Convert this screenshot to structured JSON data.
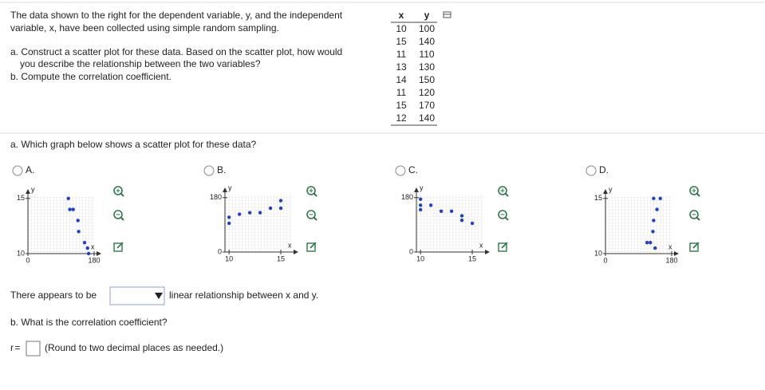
{
  "question": {
    "intro": [
      "The data shown to the right for the dependent variable, y, and the independent",
      "variable, x, have been collected using simple random sampling."
    ],
    "part_a": [
      "a. Construct a scatter plot for these data. Based on the scatter plot, how would",
      "you describe the relationship between the two variables?"
    ],
    "part_b": "b. Compute the correlation coefficient."
  },
  "table": {
    "headers": [
      "x",
      "y"
    ],
    "rows": [
      [
        10,
        100
      ],
      [
        15,
        140
      ],
      [
        11,
        110
      ],
      [
        13,
        130
      ],
      [
        14,
        150
      ],
      [
        11,
        120
      ],
      [
        15,
        170
      ],
      [
        12,
        140
      ]
    ]
  },
  "part_a": {
    "prompt": "a. Which graph below shows a scatter plot for these data?",
    "options": [
      {
        "label": "A.",
        "graph": {
          "x_label": "x",
          "y_label": "y",
          "xlim": [
            0,
            180
          ],
          "ylim": [
            10,
            15.2
          ],
          "xticks": [
            0,
            180
          ],
          "yticks": [
            10,
            15
          ],
          "x": [
            110,
            114,
            123,
            136,
            138,
            154,
            162,
            165
          ],
          "y": [
            15,
            14,
            14,
            13,
            12,
            11,
            10.5,
            10
          ]
        }
      },
      {
        "label": "B.",
        "graph": {
          "x_label": "x",
          "y_label": "y",
          "xlim": [
            9.6,
            16
          ],
          "ylim": [
            0,
            190
          ],
          "xticks": [
            10,
            15
          ],
          "yticks": [
            0,
            180
          ],
          "x": [
            10,
            10,
            11,
            12,
            13,
            14,
            15,
            15
          ],
          "y": [
            95,
            115,
            125,
            130,
            130,
            145,
            145,
            170
          ]
        }
      },
      {
        "label": "C.",
        "graph": {
          "x_label": "x",
          "y_label": "y",
          "xlim": [
            9.6,
            16
          ],
          "ylim": [
            0,
            190
          ],
          "xticks": [
            10,
            15
          ],
          "yticks": [
            0,
            180
          ],
          "x": [
            10,
            10,
            10,
            11,
            12,
            13,
            14,
            14,
            15
          ],
          "y": [
            175,
            155,
            140,
            155,
            135,
            135,
            105,
            120,
            95
          ]
        }
      },
      {
        "label": "D.",
        "graph": {
          "x_label": "x",
          "y_label": "y",
          "xlim": [
            0,
            180
          ],
          "ylim": [
            10,
            15.2
          ],
          "xticks": [
            0,
            180
          ],
          "yticks": [
            10,
            15
          ],
          "x": [
            131,
            149,
            140,
            131,
            129,
            113,
            122,
            135
          ],
          "y": [
            15,
            15,
            14,
            13,
            12,
            11,
            11,
            10.5
          ]
        }
      }
    ]
  },
  "relationship": {
    "before": "There appears to be",
    "after": "linear relationship between x and y."
  },
  "part_b": {
    "prompt": "b. What is the correlation coefficient?",
    "r_label": "r =",
    "hint": "(Round to two decimal places as needed.)"
  }
}
